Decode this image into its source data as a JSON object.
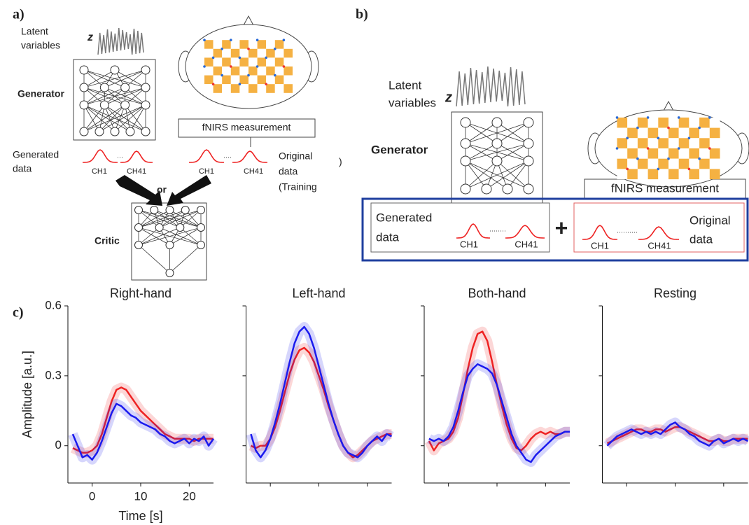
{
  "panel_a": {
    "label": "a)",
    "latent": [
      "Latent",
      "variables"
    ],
    "z": "z",
    "generator": "Generator",
    "measurement": "fNIRS measurement",
    "generated": [
      "Generated",
      "data"
    ],
    "gen_ch": [
      "CH1",
      "CH41"
    ],
    "orig_ch": [
      "CH1",
      "CH41"
    ],
    "original": [
      "Original",
      "data",
      "(Training"
    ],
    "paren": ")",
    "or": "or",
    "critic": "Critic"
  },
  "panel_b": {
    "label": "b)",
    "latent": [
      "Latent",
      "variables"
    ],
    "z": "z",
    "generator": "Generator",
    "measurement": "fNIRS measurement",
    "generated": [
      "Generated",
      "data"
    ],
    "gen_ch": [
      "CH1",
      "CH41"
    ],
    "plus": "+",
    "orig_ch": [
      "CH1",
      "CH41"
    ],
    "original": [
      "Original",
      "data"
    ]
  },
  "panel_c": {
    "label": "c)"
  },
  "chart_data": [
    {
      "type": "line",
      "title": "Right-hand",
      "ylabel": "Amplitude [a.u.]",
      "xlabel": "Time [s]",
      "tick_labels": true,
      "x": [
        -4,
        -3,
        -2,
        -1,
        0,
        1,
        2,
        3,
        4,
        5,
        6,
        7,
        8,
        9,
        10,
        11,
        12,
        13,
        14,
        15,
        16,
        17,
        18,
        19,
        20,
        21,
        22,
        23,
        24,
        25
      ],
      "xlim": [
        -5,
        25
      ],
      "ylim": [
        -0.16,
        0.6
      ],
      "xticks": [
        0,
        10,
        20
      ],
      "yticks": [
        0,
        0.3,
        0.6
      ],
      "series": [
        {
          "color": "#ee2222",
          "values": [
            -0.01,
            -0.02,
            -0.03,
            -0.03,
            -0.02,
            0,
            0.05,
            0.12,
            0.19,
            0.24,
            0.25,
            0.24,
            0.21,
            0.18,
            0.15,
            0.13,
            0.11,
            0.09,
            0.07,
            0.05,
            0.04,
            0.03,
            0.03,
            0.03,
            0.03,
            0.02,
            0.03,
            0.03,
            0.03,
            0.03
          ]
        },
        {
          "color": "#1a1aee",
          "values": [
            0.05,
            0,
            -0.05,
            -0.04,
            -0.06,
            -0.03,
            0.02,
            0.08,
            0.14,
            0.18,
            0.17,
            0.15,
            0.13,
            0.12,
            0.1,
            0.09,
            0.08,
            0.07,
            0.05,
            0.04,
            0.02,
            0.01,
            0.02,
            0.03,
            0.01,
            0.03,
            0.02,
            0.04,
            0,
            0.03
          ]
        }
      ]
    },
    {
      "type": "line",
      "title": "Left-hand",
      "tick_labels": false,
      "x": [
        -4,
        -3,
        -2,
        -1,
        0,
        1,
        2,
        3,
        4,
        5,
        6,
        7,
        8,
        9,
        10,
        11,
        12,
        13,
        14,
        15,
        16,
        17,
        18,
        19,
        20,
        21,
        22,
        23,
        24,
        25
      ],
      "xlim": [
        -5,
        25
      ],
      "ylim": [
        -0.16,
        0.6
      ],
      "xticks": [
        0,
        10,
        20
      ],
      "yticks": [
        0,
        0.3,
        0.6
      ],
      "series": [
        {
          "color": "#ee2222",
          "values": [
            0,
            -0.01,
            0,
            0,
            0.03,
            0.08,
            0.15,
            0.23,
            0.31,
            0.37,
            0.41,
            0.42,
            0.4,
            0.36,
            0.3,
            0.24,
            0.17,
            0.11,
            0.05,
            0,
            -0.03,
            -0.05,
            -0.04,
            -0.02,
            0,
            0.02,
            0.03,
            0.04,
            0.05,
            0.05
          ]
        },
        {
          "color": "#1a1aee",
          "values": [
            0.05,
            -0.02,
            -0.05,
            -0.02,
            0.03,
            0.1,
            0.18,
            0.27,
            0.36,
            0.44,
            0.49,
            0.51,
            0.48,
            0.42,
            0.34,
            0.26,
            0.18,
            0.11,
            0.05,
            0,
            -0.03,
            -0.04,
            -0.05,
            -0.03,
            0,
            0.02,
            0.04,
            0.02,
            0.05,
            0.04
          ]
        }
      ]
    },
    {
      "type": "line",
      "title": "Both-hand",
      "tick_labels": false,
      "x": [
        -4,
        -3,
        -2,
        -1,
        0,
        1,
        2,
        3,
        4,
        5,
        6,
        7,
        8,
        9,
        10,
        11,
        12,
        13,
        14,
        15,
        16,
        17,
        18,
        19,
        20,
        21,
        22,
        23,
        24,
        25
      ],
      "xlim": [
        -5,
        25
      ],
      "ylim": [
        -0.16,
        0.6
      ],
      "xticks": [
        0,
        10,
        20
      ],
      "yticks": [
        0,
        0.3,
        0.6
      ],
      "series": [
        {
          "color": "#ee2222",
          "values": [
            0.02,
            -0.02,
            0.01,
            0.02,
            0.03,
            0.06,
            0.12,
            0.22,
            0.33,
            0.42,
            0.48,
            0.49,
            0.45,
            0.36,
            0.26,
            0.17,
            0.09,
            0.03,
            -0.01,
            -0.02,
            0,
            0.03,
            0.05,
            0.06,
            0.05,
            0.06,
            0.05,
            0.05,
            0.06,
            0.06
          ]
        },
        {
          "color": "#1a1aee",
          "values": [
            0.03,
            0.02,
            0.03,
            0.02,
            0.04,
            0.08,
            0.15,
            0.23,
            0.3,
            0.33,
            0.35,
            0.34,
            0.33,
            0.31,
            0.26,
            0.19,
            0.12,
            0.05,
            0,
            -0.03,
            -0.06,
            -0.07,
            -0.04,
            -0.02,
            0,
            0.02,
            0.04,
            0.05,
            0.06,
            0.06
          ]
        }
      ]
    },
    {
      "type": "line",
      "title": "Resting",
      "tick_labels": false,
      "x": [
        -4,
        -3,
        -2,
        -1,
        0,
        1,
        2,
        3,
        4,
        5,
        6,
        7,
        8,
        9,
        10,
        11,
        12,
        13,
        14,
        15,
        16,
        17,
        18,
        19,
        20,
        21,
        22,
        23,
        24,
        25
      ],
      "xlim": [
        -5,
        25
      ],
      "ylim": [
        -0.16,
        0.6
      ],
      "xticks": [
        0,
        10,
        20
      ],
      "yticks": [
        0,
        0.3,
        0.6
      ],
      "series": [
        {
          "color": "#ee2222",
          "values": [
            0.01,
            0.02,
            0.03,
            0.04,
            0.05,
            0.06,
            0.07,
            0.07,
            0.06,
            0.06,
            0.07,
            0.07,
            0.06,
            0.07,
            0.08,
            0.08,
            0.07,
            0.06,
            0.05,
            0.04,
            0.03,
            0.02,
            0.02,
            0.03,
            0.02,
            0.02,
            0.03,
            0.03,
            0.03,
            0.03
          ]
        },
        {
          "color": "#1a1aee",
          "values": [
            0,
            0.02,
            0.04,
            0.05,
            0.06,
            0.07,
            0.06,
            0.05,
            0.06,
            0.05,
            0.06,
            0.05,
            0.07,
            0.09,
            0.1,
            0.08,
            0.07,
            0.05,
            0.04,
            0.02,
            0.01,
            0,
            0.02,
            0.03,
            0.01,
            0.02,
            0.03,
            0.02,
            0.03,
            0.02
          ]
        }
      ]
    }
  ]
}
